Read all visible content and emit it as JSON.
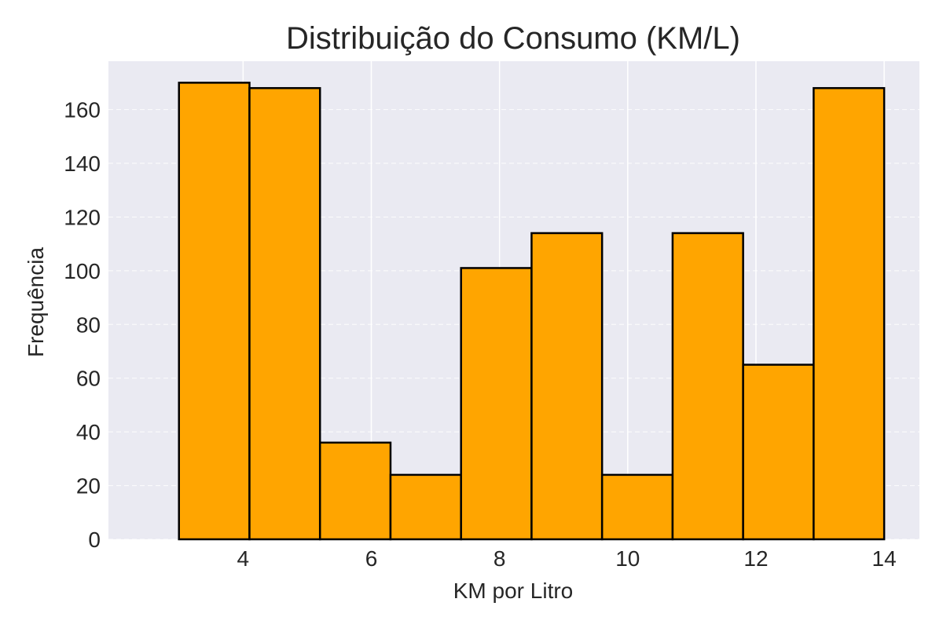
{
  "chart_data": {
    "type": "bar",
    "title": "Distribuição do Consumo (KM/L)",
    "xlabel": "KM por Litro",
    "ylabel": "Frequência",
    "bin_edges": [
      3.0,
      4.1,
      5.2,
      6.3,
      7.4,
      8.5,
      9.6,
      10.7,
      11.8,
      12.9,
      14.0
    ],
    "values": [
      170,
      168,
      36,
      24,
      101,
      114,
      24,
      114,
      65,
      168
    ],
    "xlim": [
      1.9,
      14.55
    ],
    "ylim": [
      0,
      178
    ],
    "x_ticks": [
      4,
      6,
      8,
      10,
      12,
      14
    ],
    "y_ticks": [
      0,
      20,
      40,
      60,
      80,
      100,
      120,
      140,
      160
    ],
    "bar_color": "#ffa500",
    "edge_color": "#000000",
    "background_color": "#eaeaf2",
    "grid": true
  }
}
